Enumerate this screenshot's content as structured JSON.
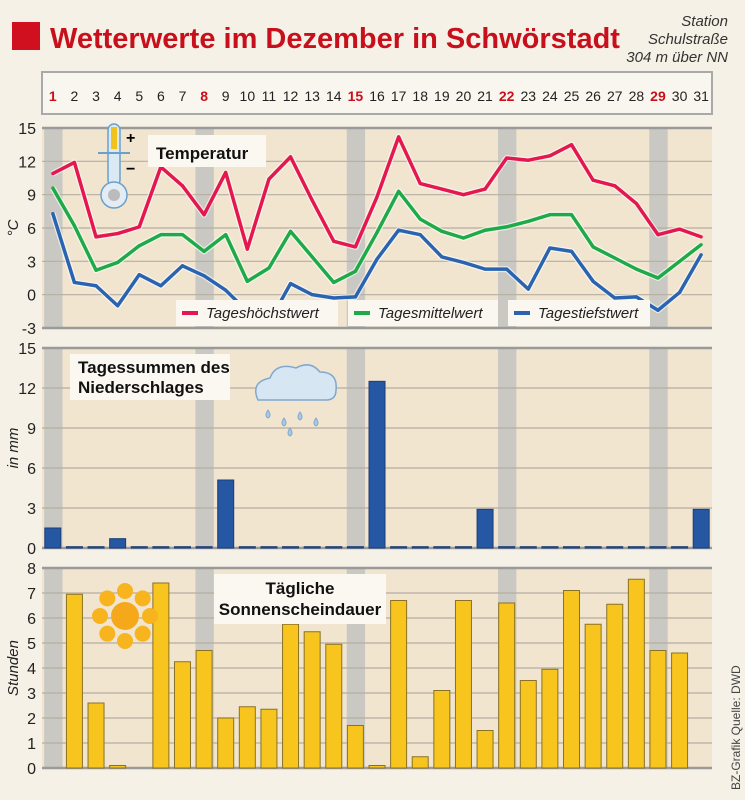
{
  "header": {
    "title": "Wetterwerte im Dezember in Schwörstadt",
    "station_line1": "Station",
    "station_line2": "Schulstraße",
    "station_line3": "304 m über NN",
    "accent": "#d0101e"
  },
  "source": "BZ-Grafik Quelle: DWD",
  "days": [
    "1",
    "2",
    "3",
    "4",
    "5",
    "6",
    "7",
    "8",
    "9",
    "10",
    "11",
    "12",
    "13",
    "14",
    "15",
    "16",
    "17",
    "18",
    "19",
    "20",
    "21",
    "22",
    "23",
    "24",
    "25",
    "26",
    "27",
    "28",
    "29",
    "30",
    "31"
  ],
  "sundays": [
    1,
    8,
    15,
    22,
    29
  ],
  "chart_data": [
    {
      "type": "line",
      "title": "Temperatur",
      "ylabel": "°C",
      "ylim": [
        -3,
        15
      ],
      "yticks": [
        "-3",
        "0",
        "3",
        "6",
        "9",
        "12",
        "15"
      ],
      "x": [
        1,
        2,
        3,
        4,
        5,
        6,
        7,
        8,
        9,
        10,
        11,
        12,
        13,
        14,
        15,
        16,
        17,
        18,
        19,
        20,
        21,
        22,
        23,
        24,
        25,
        26,
        27,
        28,
        29,
        30,
        31
      ],
      "series": [
        {
          "name": "Tageshöchstwert",
          "color": "#e5174f",
          "values": [
            10.9,
            11.9,
            5.2,
            5.5,
            6.1,
            11.5,
            9.8,
            7.2,
            11.0,
            4.1,
            10.4,
            12.4,
            8.5,
            4.8,
            4.3,
            8.8,
            14.2,
            10.0,
            9.5,
            9.0,
            9.5,
            12.3,
            12.1,
            12.5,
            13.5,
            10.3,
            9.8,
            8.2,
            5.4,
            5.9,
            5.2
          ]
        },
        {
          "name": "Tagesmittelwert",
          "color": "#1faa48",
          "values": [
            9.6,
            6.2,
            2.2,
            2.9,
            4.4,
            5.4,
            5.4,
            3.9,
            5.4,
            1.2,
            2.4,
            5.7,
            3.4,
            1.1,
            2.1,
            5.6,
            9.3,
            6.8,
            5.7,
            5.1,
            5.8,
            6.1,
            6.6,
            7.2,
            7.2,
            4.3,
            3.3,
            2.3,
            1.5,
            3.0,
            4.5
          ]
        },
        {
          "name": "Tagestiefstwert",
          "color": "#2a64b0",
          "values": [
            7.3,
            1.1,
            0.8,
            -1.0,
            1.8,
            0.8,
            2.6,
            1.7,
            0.4,
            -1.5,
            -2.5,
            1.0,
            0.0,
            -0.3,
            -0.2,
            3.2,
            5.8,
            5.4,
            3.4,
            2.9,
            2.3,
            2.3,
            0.5,
            4.2,
            3.9,
            1.2,
            -0.3,
            -0.2,
            -1.4,
            0.2,
            3.6
          ]
        }
      ]
    },
    {
      "type": "bar",
      "title": "Tagessummen des Niederschlages",
      "title_line1": "Tagessummen des",
      "title_line2": "Niederschlages",
      "ylabel": "in mm",
      "ylim": [
        0,
        15
      ],
      "yticks": [
        "0",
        "3",
        "6",
        "9",
        "12",
        "15"
      ],
      "color": "#2557a3",
      "values": [
        1.5,
        0.1,
        0.1,
        0.7,
        0.1,
        0.1,
        0.1,
        0.1,
        5.1,
        0.1,
        0.1,
        0.1,
        0.1,
        0.1,
        0.1,
        12.5,
        0.1,
        0.1,
        0.1,
        0.1,
        2.9,
        0.1,
        0.1,
        0.1,
        0.1,
        0.1,
        0.1,
        0.1,
        0.1,
        0.1,
        2.9
      ]
    },
    {
      "type": "bar",
      "title": "Tägliche Sonnenscheindauer",
      "title_line1": "Tägliche",
      "title_line2": "Sonnenscheindauer",
      "ylabel": "Stunden",
      "ylim": [
        0,
        8
      ],
      "yticks": [
        "0",
        "1",
        "2",
        "3",
        "4",
        "5",
        "6",
        "7",
        "8"
      ],
      "color": "#f7c51e",
      "values": [
        0,
        6.95,
        2.6,
        0.1,
        0,
        7.4,
        4.25,
        4.7,
        2.0,
        2.45,
        2.35,
        5.75,
        5.45,
        4.95,
        1.7,
        0.1,
        6.7,
        0.45,
        3.1,
        6.7,
        1.5,
        6.6,
        3.5,
        3.95,
        7.1,
        5.75,
        6.55,
        7.55,
        4.7,
        4.6,
        0
      ]
    }
  ]
}
